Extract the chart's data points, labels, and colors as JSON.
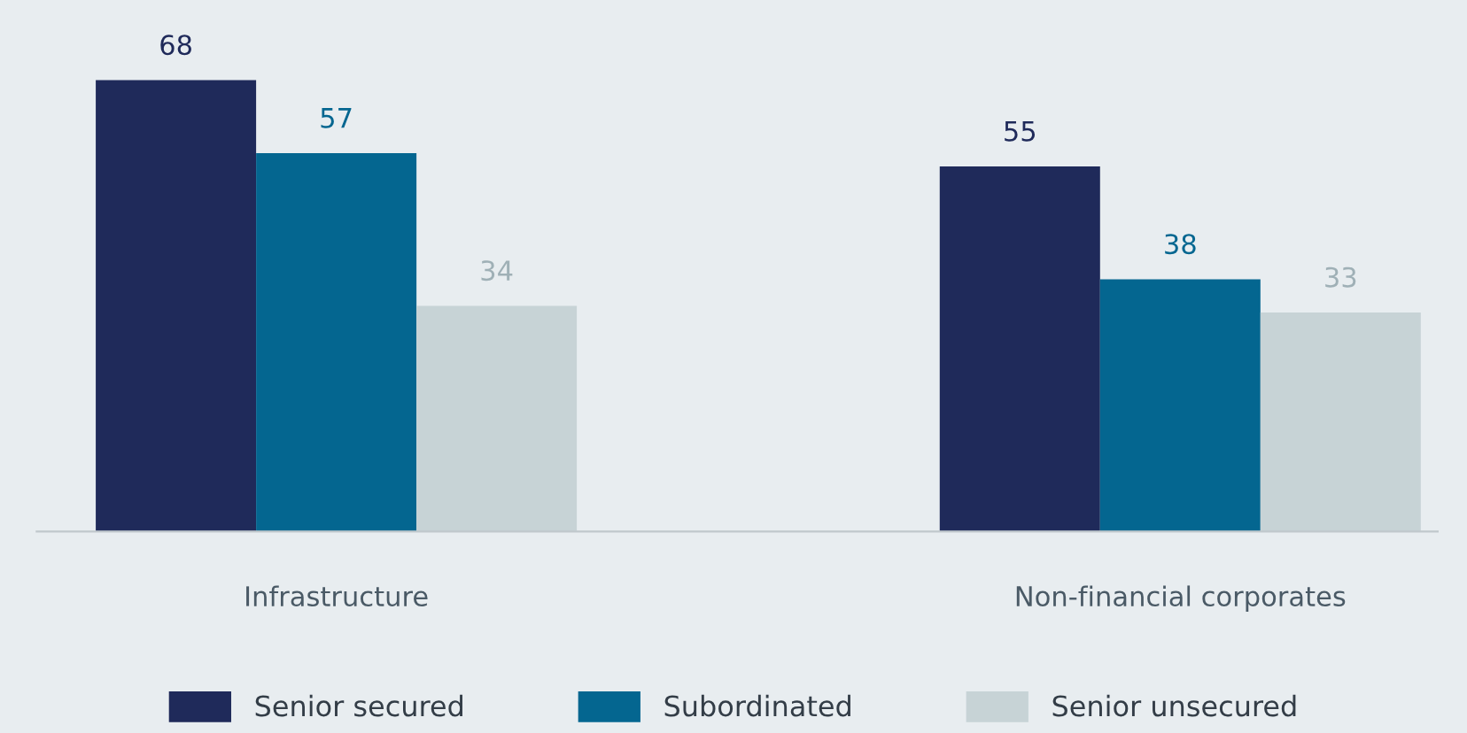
{
  "chart_data": {
    "type": "bar",
    "data_labels": true,
    "legend": "bottom",
    "grid": false,
    "categories": [
      "Infrastructure",
      "Non-financial corporates"
    ],
    "series": [
      {
        "name": "Senior secured",
        "color": "#1f2a5a",
        "values": [
          68,
          55
        ]
      },
      {
        "name": "Subordinated",
        "color": "#046690",
        "values": [
          57,
          38
        ]
      },
      {
        "name": "Senior unsecured",
        "color": "#c7d3d6",
        "values": [
          34,
          33
        ]
      }
    ]
  }
}
